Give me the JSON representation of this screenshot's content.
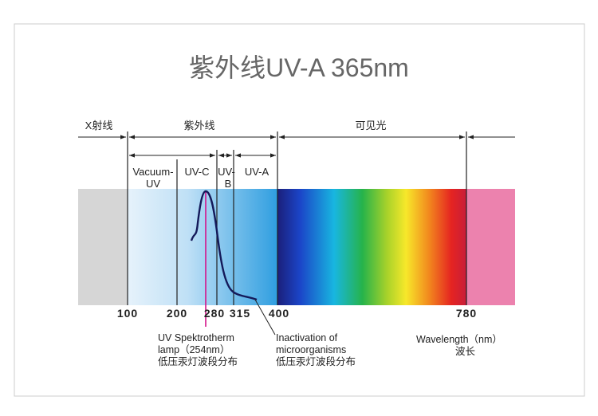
{
  "title": "紫外线UV-A 365nm",
  "regions": [
    "X射线",
    "紫外线",
    "可见光"
  ],
  "bands": [
    [
      "Vacuum-",
      "UV"
    ],
    [
      "UV-C"
    ],
    [
      "UV-",
      "B"
    ],
    [
      "UV-A"
    ]
  ],
  "ticks": [
    "100",
    "200",
    "280",
    "315",
    "400",
    "780"
  ],
  "annotations": [
    [
      "UV Spektrotherm",
      "lamp（254nm）",
      "低压汞灯波段分布"
    ],
    [
      "Inactivation of",
      "microorganisms",
      "低压汞灯波段分布"
    ],
    [
      "Wavelength（nm）",
      "波长"
    ]
  ]
}
